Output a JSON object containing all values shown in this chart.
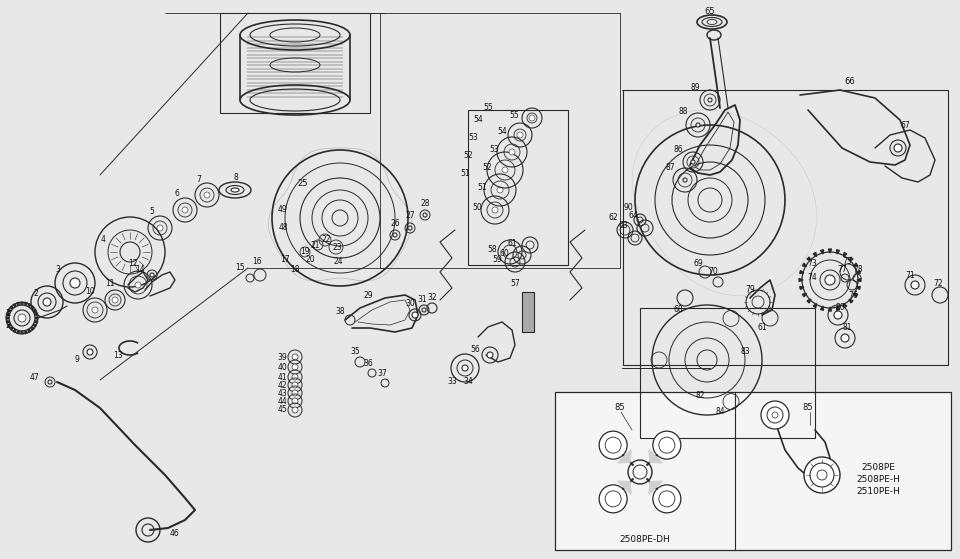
{
  "bg_color": "#e8e8e8",
  "fig_width": 9.6,
  "fig_height": 5.59,
  "dpi": 100,
  "line_color": "#2a2a2a",
  "text_color": "#111111",
  "insert_bg": "#f0f0f0",
  "model_labels_left": [
    "2508PE-DH"
  ],
  "model_labels_right": [
    "2508PE",
    "2508PE-H",
    "2510PE-H"
  ]
}
